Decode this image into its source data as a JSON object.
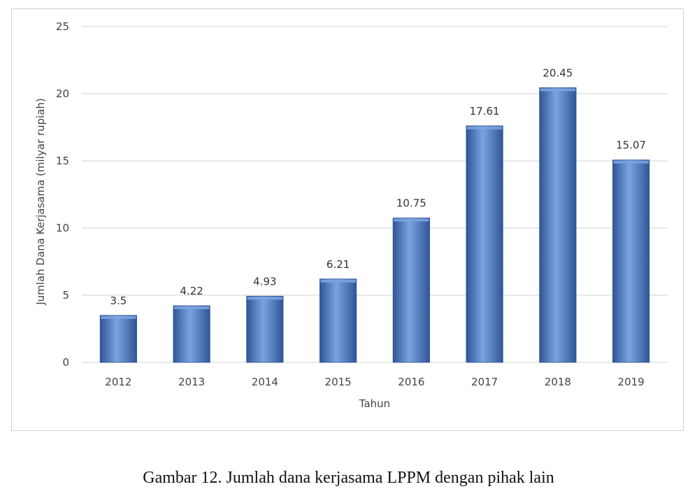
{
  "chart_data": {
    "type": "bar",
    "categories": [
      "2012",
      "2013",
      "2014",
      "2015",
      "2016",
      "2017",
      "2018",
      "2019"
    ],
    "values": [
      3.5,
      4.22,
      4.93,
      6.21,
      10.75,
      17.61,
      20.45,
      15.07
    ],
    "data_labels": [
      "3.5",
      "4.22",
      "4.93",
      "6.21",
      "10.75",
      "17.61",
      "20.45",
      "15.07"
    ],
    "title": "",
    "xlabel": "Tahun",
    "ylabel": "Jumlah Dana Kerjasama (milyar rupiah)",
    "ylim": [
      0,
      25
    ],
    "yticks": [
      0,
      5,
      10,
      15,
      20,
      25
    ],
    "grid": true,
    "legend": "none",
    "colors": {
      "bar": "#4a78c2",
      "bar_light": "#7ba3e0",
      "bar_dark": "#2f5597",
      "gridline": "#d9d9d9"
    }
  },
  "caption": "Gambar 12. Jumlah dana kerjasama LPPM dengan pihak lain"
}
